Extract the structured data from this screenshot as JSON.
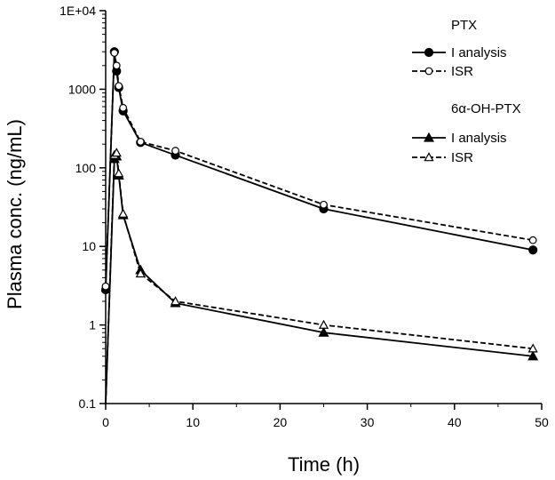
{
  "chart_data": {
    "type": "line",
    "title": "",
    "xlabel": "Time (h)",
    "ylabel": "Plasma conc. (ng/mL)",
    "xlim": [
      0,
      50
    ],
    "ylim": [
      0.1,
      10000
    ],
    "yscale": "log",
    "grid": false,
    "legend_position": "top-right",
    "x_ticks": [
      0,
      10,
      20,
      30,
      40,
      50
    ],
    "x_tick_labels": [
      "0",
      "10",
      "20",
      "30",
      "40",
      "50"
    ],
    "y_ticks": [
      0.1,
      1,
      10,
      100,
      1000,
      10000
    ],
    "y_tick_labels": [
      "0.1",
      "1",
      "10",
      "100",
      "1000",
      "1E+04"
    ],
    "legend_groups": [
      {
        "title": "PTX",
        "entries": [
          "I analysis",
          "ISR"
        ]
      },
      {
        "title": "6α-OH-PTX",
        "entries": [
          "I analysis",
          "ISR"
        ]
      }
    ],
    "series": [
      {
        "name": "PTX I analysis",
        "group": 0,
        "line": "solid",
        "marker": "circle",
        "filled": true,
        "x": [
          0,
          1,
          1.25,
          1.5,
          2,
          4,
          8,
          25,
          49
        ],
        "y": [
          2.8,
          3000,
          1700,
          1050,
          530,
          210,
          145,
          30,
          9
        ]
      },
      {
        "name": "PTX ISR",
        "group": 0,
        "line": "dashed",
        "marker": "circle",
        "filled": false,
        "x": [
          0,
          1,
          1.25,
          1.5,
          2,
          4,
          8,
          25,
          49
        ],
        "y": [
          3.1,
          2900,
          2000,
          1100,
          580,
          215,
          165,
          34,
          12
        ]
      },
      {
        "name": "6α-OH-PTX I analysis",
        "group": 1,
        "line": "solid",
        "marker": "triangle",
        "filled": true,
        "x": [
          0,
          1,
          1.25,
          1.5,
          2,
          4,
          8,
          25,
          49
        ],
        "y": [
          0,
          130,
          140,
          80,
          25,
          5,
          1.9,
          0.8,
          0.4
        ]
      },
      {
        "name": "6α-OH-PTX ISR",
        "group": 1,
        "line": "dashed",
        "marker": "triangle",
        "filled": false,
        "x": [
          0,
          1,
          1.25,
          1.5,
          2,
          4,
          8,
          25,
          49
        ],
        "y": [
          0,
          145,
          155,
          85,
          26,
          4.5,
          2.0,
          1.0,
          0.5
        ]
      }
    ]
  }
}
